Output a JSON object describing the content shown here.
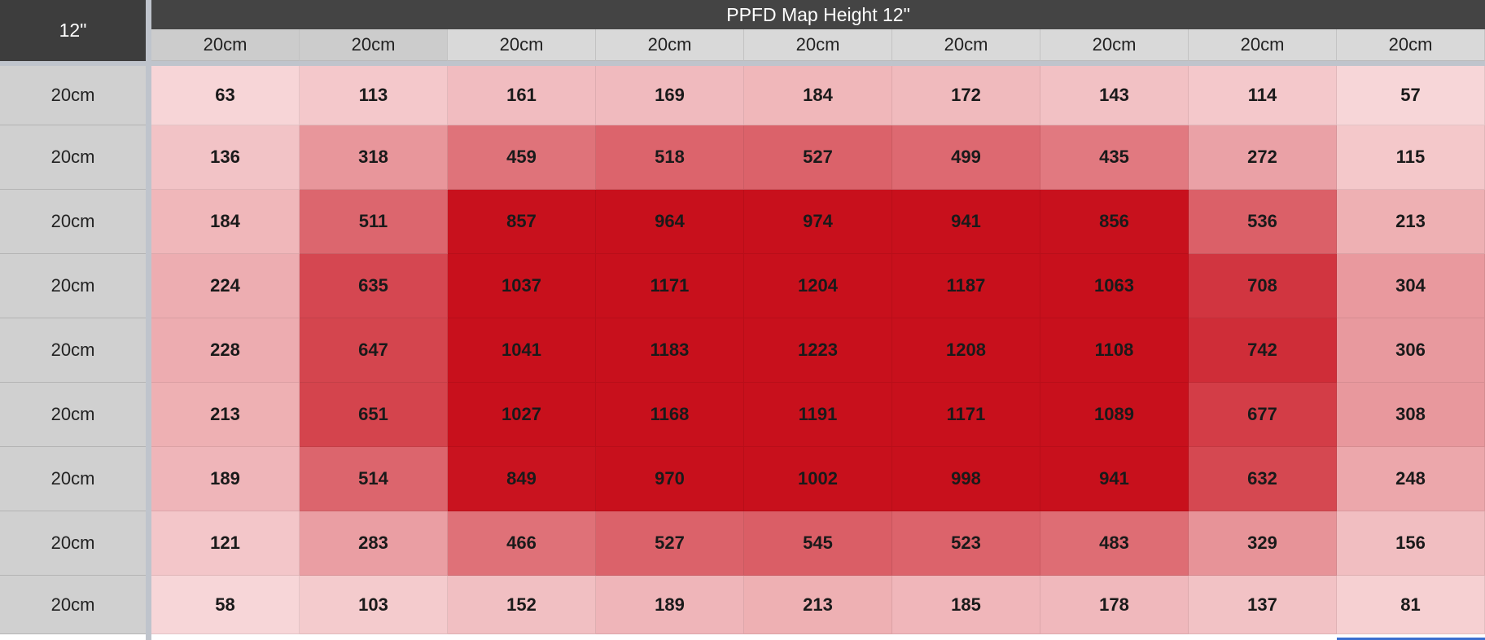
{
  "corner_label": "12\"",
  "title": "PPFD Map Height 12\"",
  "column_headers": [
    "20cm",
    "20cm",
    "20cm",
    "20cm",
    "20cm",
    "20cm",
    "20cm",
    "20cm",
    "20cm"
  ],
  "row_headers": [
    "20cm",
    "20cm",
    "20cm",
    "20cm",
    "20cm",
    "20cm",
    "20cm",
    "20cm",
    "20cm"
  ],
  "colors": {
    "header_dark": "#444444",
    "header_light": "#d9d9d9",
    "cell_low": "#f7d6d8",
    "cell_high": "#c8101c"
  },
  "chart_data": {
    "type": "heatmap",
    "title": "PPFD Map Height 12\"",
    "x_labels": [
      "20cm",
      "20cm",
      "20cm",
      "20cm",
      "20cm",
      "20cm",
      "20cm",
      "20cm",
      "20cm"
    ],
    "y_labels": [
      "20cm",
      "20cm",
      "20cm",
      "20cm",
      "20cm",
      "20cm",
      "20cm",
      "20cm",
      "20cm"
    ],
    "values": [
      [
        63,
        113,
        161,
        169,
        184,
        172,
        143,
        114,
        57
      ],
      [
        136,
        318,
        459,
        518,
        527,
        499,
        435,
        272,
        115
      ],
      [
        184,
        511,
        857,
        964,
        974,
        941,
        856,
        536,
        213
      ],
      [
        224,
        635,
        1037,
        1171,
        1204,
        1187,
        1063,
        708,
        304
      ],
      [
        228,
        647,
        1041,
        1183,
        1223,
        1208,
        1108,
        742,
        306
      ],
      [
        213,
        651,
        1027,
        1168,
        1191,
        1171,
        1089,
        677,
        308
      ],
      [
        189,
        514,
        849,
        970,
        1002,
        998,
        941,
        632,
        248
      ],
      [
        121,
        283,
        466,
        527,
        545,
        523,
        483,
        329,
        156
      ],
      [
        58,
        103,
        152,
        189,
        213,
        185,
        178,
        137,
        81
      ]
    ]
  }
}
